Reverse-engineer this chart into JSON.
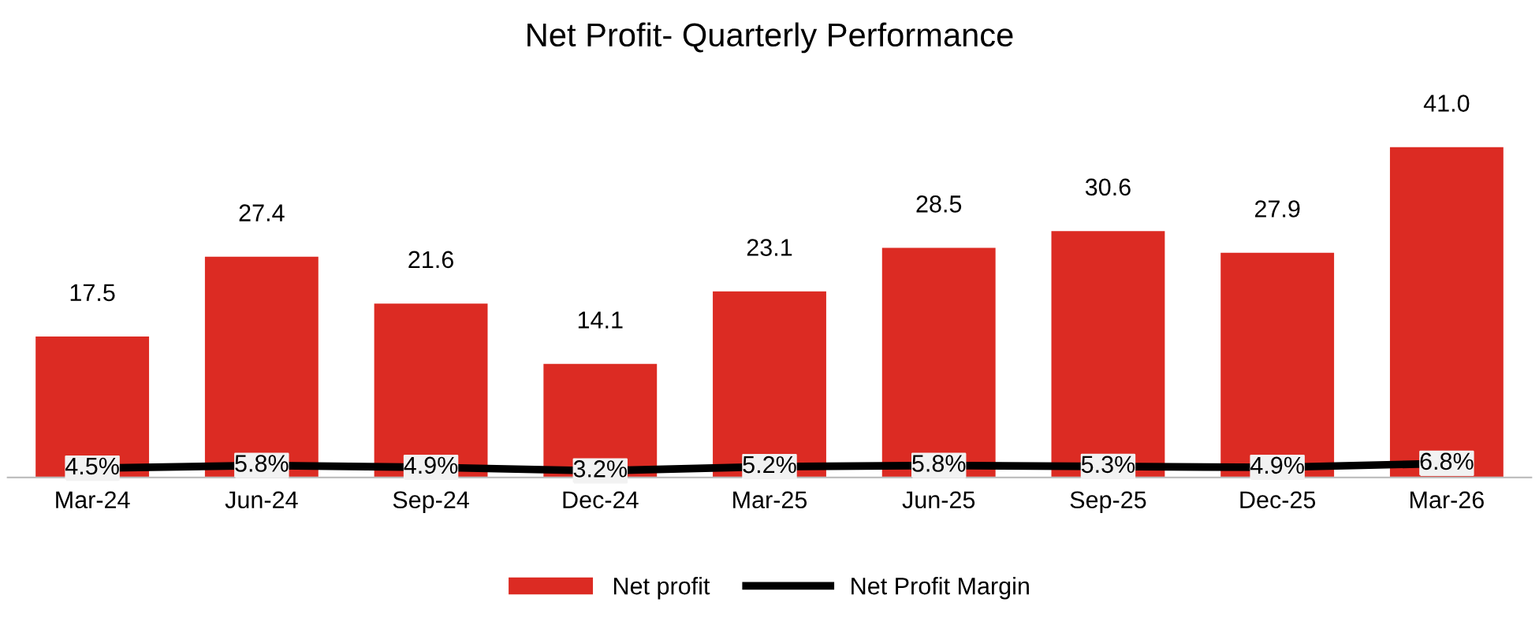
{
  "chart_data": {
    "type": "bar",
    "title": "Net Profit- Quarterly Performance",
    "categories": [
      "Mar-24",
      "Jun-24",
      "Sep-24",
      "Dec-24",
      "Mar-25",
      "Jun-25",
      "Sep-25",
      "Dec-25",
      "Mar-26"
    ],
    "series": [
      {
        "name": "Net profit",
        "color": "#dc2b23",
        "values": [
          17.5,
          27.4,
          21.6,
          14.1,
          23.1,
          28.5,
          30.6,
          27.9,
          41.0
        ],
        "value_labels": [
          "17.5",
          "27.4",
          "21.6",
          "14.1",
          "23.1",
          "28.5",
          "30.6",
          "27.9",
          "41.0"
        ]
      },
      {
        "name": "Net Profit Margin",
        "type": "line",
        "axis": "y2",
        "color": "#000000",
        "values": [
          4.5,
          5.8,
          4.9,
          3.2,
          5.2,
          5.8,
          5.3,
          4.9,
          6.8
        ],
        "value_labels": [
          "4.5%",
          "5.8%",
          "4.9%",
          "3.2%",
          "5.2%",
          "5.8%",
          "5.3%",
          "4.9%",
          "6.8%"
        ],
        "line_style": "solid",
        "marker": "square"
      }
    ],
    "tick_labels": "x",
    "legend": "bottom"
  }
}
